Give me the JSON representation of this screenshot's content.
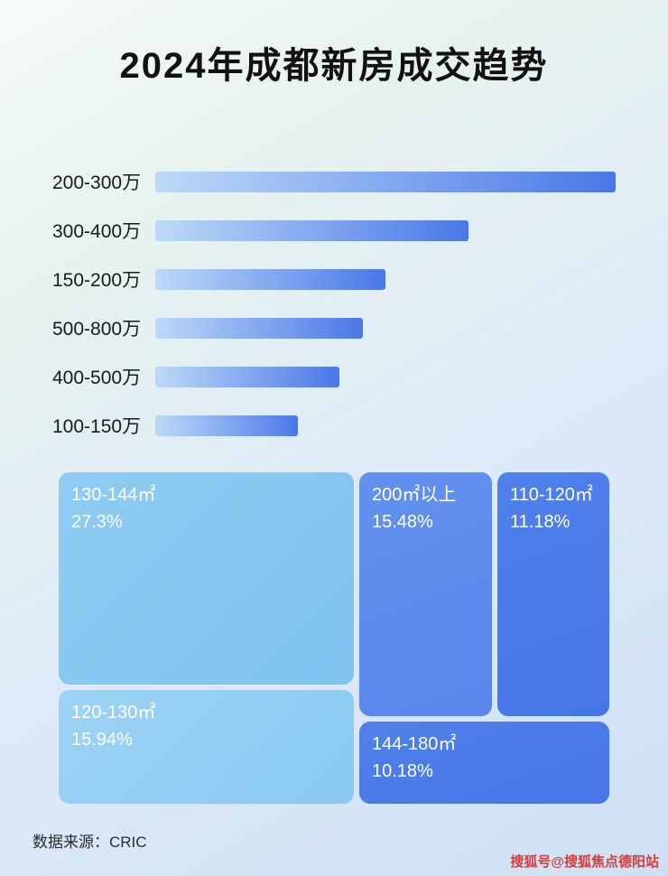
{
  "title": "2024年成都新房成交趋势",
  "chart_data": [
    {
      "type": "bar",
      "orientation": "horizontal",
      "categories": [
        "200-300万",
        "300-400万",
        "150-200万",
        "500-800万",
        "400-500万",
        "100-150万"
      ],
      "values": [
        100,
        68,
        50,
        45,
        40,
        31
      ],
      "value_note": "relative bar length, % of longest bar (no numeric labels shown in image)",
      "bar_color_gradient": [
        "#bdd9f7",
        "#4a77e8"
      ],
      "grid": false,
      "legend": false
    },
    {
      "type": "treemap",
      "items": [
        {
          "label": "130-144㎡",
          "value": "27.3%",
          "color": "#89c9f2"
        },
        {
          "label": "120-130㎡",
          "value": "15.94%",
          "color": "#94cff4"
        },
        {
          "label": "200㎡以上",
          "value": "15.48%",
          "color": "#5d8ded"
        },
        {
          "label": "110-120㎡",
          "value": "11.18%",
          "color": "#4a7ae9"
        },
        {
          "label": "144-180㎡",
          "value": "10.18%",
          "color": "#4a7ae9"
        }
      ],
      "text_color": "#ffffff"
    }
  ],
  "footer": {
    "source": "数据来源：CRIC"
  },
  "watermark": "搜狐号@搜狐焦点德阳站",
  "colors": {
    "title_text": "#121212",
    "label_text": "#1a1a1a",
    "watermark_red": "#d93b3b",
    "background_top": "#f6fbf7",
    "background_bottom": "#cfe0f4"
  }
}
